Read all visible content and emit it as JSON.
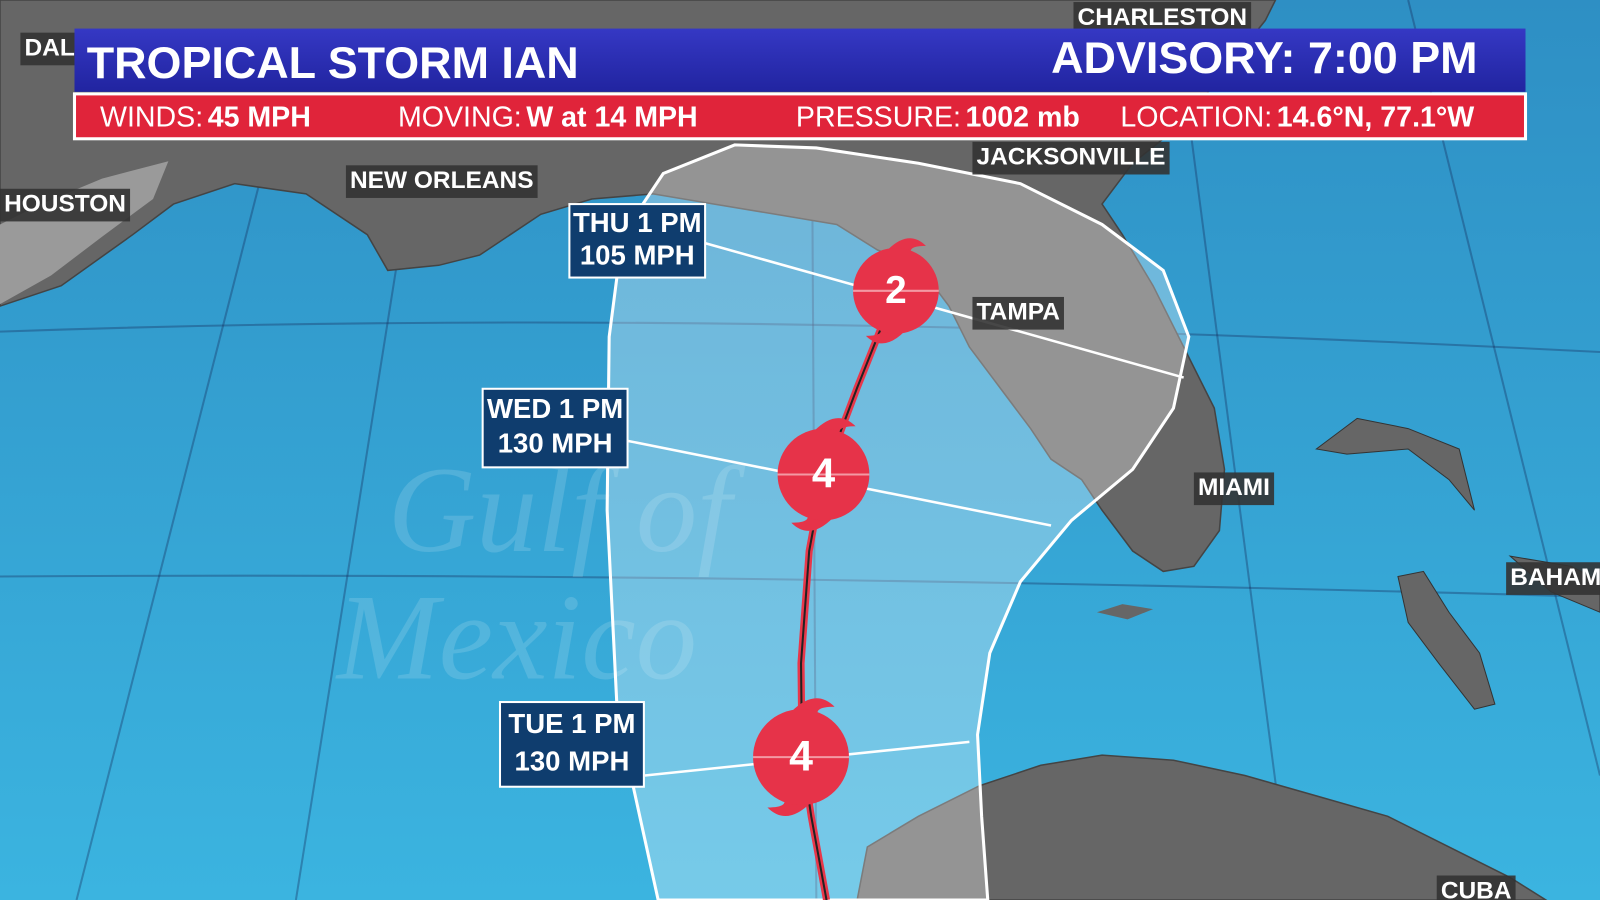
{
  "header": {
    "title": "TROPICAL STORM IAN",
    "advisory": "ADVISORY: 7:00 PM"
  },
  "stats": [
    {
      "label": "WINDS:",
      "value": "45 MPH"
    },
    {
      "label": "MOVING:",
      "value": "W at 14 MPH"
    },
    {
      "label": "PRESSURE:",
      "value": "1002 mb"
    },
    {
      "label": "LOCATION:",
      "value": "14.6°N, 77.1°W"
    }
  ],
  "cities": [
    "DAL",
    "CHARLESTON",
    "HOUSTON",
    "NEW ORLEANS",
    "JACKSONVILLE",
    "TAMPA",
    "MIAMI",
    "BAHAM",
    "CUBA"
  ],
  "watermark": [
    "Gulf of",
    "Mexico"
  ],
  "forecast_points": [
    {
      "time": "THU 1 PM",
      "winds": "105 MPH",
      "category": "2"
    },
    {
      "time": "WED 1 PM",
      "winds": "130 MPH",
      "category": "4"
    },
    {
      "time": "TUE 1 PM",
      "winds": "130 MPH",
      "category": "4"
    }
  ]
}
